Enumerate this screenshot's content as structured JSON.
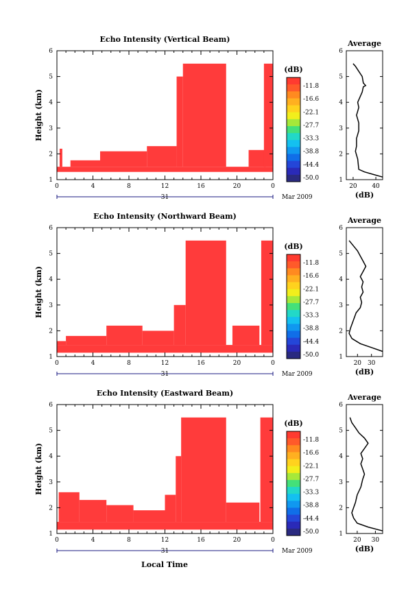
{
  "colorbar": {
    "unit": "(dB)",
    "labels": [
      "-11.8",
      "-16.6",
      "-22.1",
      "-27.7",
      "-33.3",
      "-38.8",
      "-44.4",
      "-50.0"
    ],
    "colors": [
      "#ff3b30",
      "#ff5a2a",
      "#ff8a20",
      "#ffb020",
      "#ffd21e",
      "#f2ee1c",
      "#a6e83a",
      "#44e07a",
      "#22d8c8",
      "#14c0f0",
      "#1098f0",
      "#106ee8",
      "#2446d8",
      "#2a2ab8",
      "#2a2a80"
    ]
  },
  "date_label": "Mar 2009",
  "xlabel": "Local Time",
  "xticks": [
    "0",
    "4",
    "8",
    "12",
    "16",
    "20",
    "0"
  ],
  "day_label": "31",
  "avg_title": "Average",
  "avg_xlabel": "(dB)",
  "heatmap_color": "#ff3b3b",
  "chart_data": [
    {
      "type": "heatmap",
      "title": "Echo Intensity (Vertical Beam)",
      "xlabel": "Local Time",
      "ylabel": "Height (km)",
      "xlim": [
        0,
        24
      ],
      "ylim": [
        1,
        6
      ],
      "yticks": [
        "1",
        "2",
        "3",
        "4",
        "5",
        "6"
      ],
      "unit": "dB",
      "value_shown": -11.8,
      "regions": [
        {
          "x": [
            0,
            24
          ],
          "y": [
            1.3,
            1.5
          ]
        },
        {
          "x": [
            0.3,
            0.6
          ],
          "y": [
            1.5,
            2.2
          ]
        },
        {
          "x": [
            1.5,
            4.8
          ],
          "y": [
            1.5,
            1.75
          ]
        },
        {
          "x": [
            4.8,
            10
          ],
          "y": [
            1.5,
            2.1
          ]
        },
        {
          "x": [
            10,
            13.3
          ],
          "y": [
            1.5,
            2.3
          ]
        },
        {
          "x": [
            13.3,
            14.0
          ],
          "y": [
            1.5,
            5.0
          ]
        },
        {
          "x": [
            14.0,
            18.8
          ],
          "y": [
            1.5,
            5.5
          ]
        },
        {
          "x": [
            21.3,
            23.2
          ],
          "y": [
            1.5,
            2.15
          ]
        },
        {
          "x": [
            23.0,
            24
          ],
          "y": [
            1.5,
            5.5
          ]
        }
      ],
      "average": {
        "xlim": [
          14,
          46
        ],
        "xticks": [
          "20",
          "40"
        ],
        "ylim": [
          1,
          6
        ],
        "yticks": [
          "1",
          "2",
          "3",
          "4",
          "5",
          "6"
        ],
        "x": [
          46,
          38,
          30,
          25,
          24.5,
          24,
          22,
          23,
          23,
          25,
          25,
          23,
          25,
          24,
          26,
          28,
          29,
          31,
          29,
          28,
          25,
          22,
          20
        ],
        "y": [
          1.1,
          1.2,
          1.3,
          1.4,
          1.6,
          1.8,
          2.1,
          2.3,
          2.6,
          2.9,
          3.2,
          3.5,
          3.8,
          4.0,
          4.2,
          4.4,
          4.6,
          4.65,
          4.75,
          5.0,
          5.2,
          5.4,
          5.5
        ]
      }
    },
    {
      "type": "heatmap",
      "title": "Echo Intensity (Northward Beam)",
      "xlabel": "Local Time",
      "ylabel": "Height (km)",
      "xlim": [
        0,
        24
      ],
      "ylim": [
        1,
        6
      ],
      "yticks": [
        "1",
        "2",
        "3",
        "4",
        "5",
        "6"
      ],
      "unit": "dB",
      "value_shown": -11.8,
      "regions": [
        {
          "x": [
            0,
            24
          ],
          "y": [
            1.15,
            1.45
          ]
        },
        {
          "x": [
            0,
            1.0
          ],
          "y": [
            1.45,
            1.6
          ]
        },
        {
          "x": [
            1.0,
            5.5
          ],
          "y": [
            1.45,
            1.8
          ]
        },
        {
          "x": [
            5.5,
            9.5
          ],
          "y": [
            1.45,
            2.2
          ]
        },
        {
          "x": [
            9.5,
            13.0
          ],
          "y": [
            1.45,
            2.0
          ]
        },
        {
          "x": [
            13.0,
            14.3
          ],
          "y": [
            1.45,
            3.0
          ]
        },
        {
          "x": [
            14.3,
            18.8
          ],
          "y": [
            1.45,
            5.5
          ]
        },
        {
          "x": [
            19.5,
            22.5
          ],
          "y": [
            1.45,
            2.2
          ]
        },
        {
          "x": [
            22.7,
            24
          ],
          "y": [
            1.45,
            5.5
          ]
        }
      ],
      "average": {
        "xlim": [
          12,
          38
        ],
        "xticks": [
          "20",
          "30"
        ],
        "ylim": [
          1,
          6
        ],
        "yticks": [
          "1",
          "2",
          "3",
          "4",
          "5",
          "6"
        ],
        "x": [
          38,
          30,
          22,
          16,
          14,
          15,
          17,
          19,
          22,
          23,
          22,
          24,
          23,
          24,
          22,
          24,
          26,
          24,
          22,
          20,
          17,
          14
        ],
        "y": [
          1.2,
          1.35,
          1.5,
          1.7,
          1.9,
          2.1,
          2.4,
          2.7,
          2.9,
          3.1,
          3.3,
          3.5,
          3.7,
          3.9,
          4.1,
          4.3,
          4.5,
          4.7,
          4.9,
          5.1,
          5.3,
          5.5
        ]
      }
    },
    {
      "type": "heatmap",
      "title": "Echo Intensity (Eastward Beam)",
      "xlabel": "Local Time",
      "ylabel": "Height (km)",
      "xlim": [
        0,
        24
      ],
      "ylim": [
        1,
        6
      ],
      "yticks": [
        "1",
        "2",
        "3",
        "4",
        "5",
        "6"
      ],
      "unit": "dB",
      "value_shown": -11.8,
      "regions": [
        {
          "x": [
            0,
            24
          ],
          "y": [
            1.15,
            1.45
          ]
        },
        {
          "x": [
            0.2,
            2.5
          ],
          "y": [
            1.45,
            2.6
          ]
        },
        {
          "x": [
            2.5,
            5.5
          ],
          "y": [
            1.45,
            2.3
          ]
        },
        {
          "x": [
            5.5,
            8.5
          ],
          "y": [
            1.45,
            2.1
          ]
        },
        {
          "x": [
            8.5,
            12.0
          ],
          "y": [
            1.45,
            1.9
          ]
        },
        {
          "x": [
            12.0,
            13.2
          ],
          "y": [
            1.45,
            2.5
          ]
        },
        {
          "x": [
            13.2,
            13.8
          ],
          "y": [
            1.45,
            4.0
          ]
        },
        {
          "x": [
            13.8,
            18.8
          ],
          "y": [
            1.45,
            5.5
          ]
        },
        {
          "x": [
            18.8,
            22.5
          ],
          "y": [
            1.45,
            2.2
          ]
        },
        {
          "x": [
            22.6,
            24
          ],
          "y": [
            1.45,
            5.5
          ]
        }
      ],
      "average": {
        "xlim": [
          14,
          34
        ],
        "xticks": [
          "20",
          "30"
        ],
        "ylim": [
          1,
          6
        ],
        "yticks": [
          "1",
          "2",
          "3",
          "4",
          "5",
          "6"
        ],
        "x": [
          34,
          26,
          20,
          18,
          17,
          18,
          19,
          20,
          22,
          23,
          24,
          23,
          22,
          23,
          22,
          24,
          26,
          24,
          21,
          19,
          17,
          16
        ],
        "y": [
          1.1,
          1.25,
          1.4,
          1.6,
          1.8,
          2.0,
          2.2,
          2.5,
          2.8,
          3.1,
          3.3,
          3.5,
          3.7,
          3.9,
          4.1,
          4.3,
          4.5,
          4.7,
          4.9,
          5.1,
          5.3,
          5.5
        ]
      }
    }
  ]
}
